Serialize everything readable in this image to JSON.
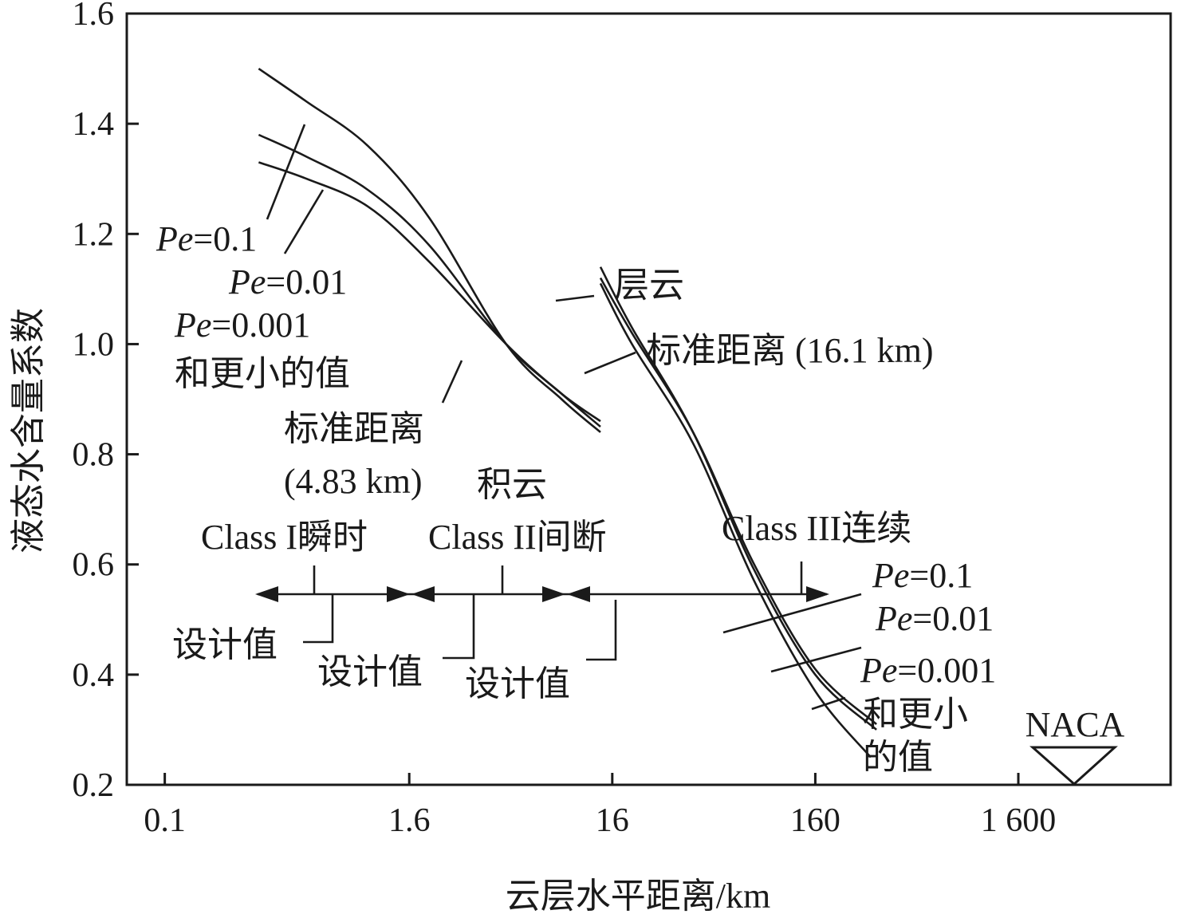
{
  "chart_data": {
    "type": "line",
    "xlabel": "云层水平距离/km",
    "ylabel": "液态水含量系数",
    "x_scale": "log",
    "xlim": [
      0.065,
      9000
    ],
    "ylim": [
      0.2,
      1.6
    ],
    "xticks": [
      {
        "value": 0.1,
        "label": "0.1"
      },
      {
        "value": 1.6,
        "label": "1.6"
      },
      {
        "value": 16,
        "label": "16"
      },
      {
        "value": 160,
        "label": "160"
      },
      {
        "value": 1600,
        "label": "1 600"
      }
    ],
    "yticks": [
      {
        "value": 0.2,
        "label": "0.2"
      },
      {
        "value": 0.4,
        "label": "0.4"
      },
      {
        "value": 0.6,
        "label": "0.6"
      },
      {
        "value": 0.8,
        "label": "0.8"
      },
      {
        "value": 1.0,
        "label": "1.0"
      },
      {
        "value": 1.2,
        "label": "1.2"
      },
      {
        "value": 1.4,
        "label": "1.4"
      },
      {
        "value": 1.6,
        "label": "1.6"
      }
    ],
    "grid": false,
    "series": [
      {
        "group": "积云",
        "name": "Pe=0.1",
        "x": [
          0.29,
          0.5,
          1.0,
          2.0,
          4.8,
          9.0,
          14.0
        ],
        "y": [
          1.5,
          1.44,
          1.36,
          1.23,
          1.0,
          0.9,
          0.84
        ]
      },
      {
        "group": "积云",
        "name": "Pe=0.01",
        "x": [
          0.29,
          0.5,
          1.0,
          2.0,
          4.8,
          9.0,
          14.0
        ],
        "y": [
          1.38,
          1.34,
          1.28,
          1.18,
          1.0,
          0.91,
          0.85
        ]
      },
      {
        "group": "积云",
        "name": "Pe=0.001 和更小的值",
        "x": [
          0.29,
          0.5,
          1.0,
          2.0,
          4.8,
          9.0,
          14.0
        ],
        "y": [
          1.33,
          1.3,
          1.25,
          1.15,
          1.0,
          0.91,
          0.86
        ]
      },
      {
        "group": "层云",
        "name": "Pe=0.1",
        "x": [
          14.0,
          20.0,
          40.0,
          80.0,
          160.0,
          320.0
        ],
        "y": [
          1.14,
          1.03,
          0.84,
          0.59,
          0.4,
          0.3
        ]
      },
      {
        "group": "层云",
        "name": "Pe=0.01",
        "x": [
          14.0,
          20.0,
          40.0,
          80.0,
          160.0,
          320.0
        ],
        "y": [
          1.12,
          1.02,
          0.84,
          0.6,
          0.41,
          0.31
        ]
      },
      {
        "group": "层云",
        "name": "Pe=0.001 和更小的值",
        "x": [
          14.0,
          20.0,
          40.0,
          80.0,
          160.0,
          300.0
        ],
        "y": [
          1.11,
          1.0,
          0.82,
          0.57,
          0.37,
          0.25
        ]
      }
    ],
    "annotations": {
      "cumulus_pe1": {
        "italic": "Pe",
        "rest": "=0.1"
      },
      "cumulus_pe2": {
        "italic": "Pe",
        "rest": "=0.01"
      },
      "cumulus_pe3": {
        "italic": "Pe",
        "rest": "=0.001"
      },
      "cumulus_pe3_line2": "和更小的值",
      "cumulus_std_line1": "标准距离",
      "cumulus_std_line2": "(4.83 km)",
      "cumulus_name": "积云",
      "stratus_name": "层云",
      "stratus_std": "标准距离 (16.1 km)",
      "stratus_pe1": {
        "italic": "Pe",
        "rest": "=0.1"
      },
      "stratus_pe2": {
        "italic": "Pe",
        "rest": "=0.01"
      },
      "stratus_pe3": {
        "italic": "Pe",
        "rest": "=0.001"
      },
      "stratus_pe3_line2": "和更小",
      "stratus_pe3_line3": "的值",
      "class1": "Class I瞬时",
      "class2": "Class II间断",
      "class3": "Class III连续",
      "design1": "设计值",
      "design2": "设计值",
      "design3": "设计值",
      "naca": "NACA"
    }
  }
}
